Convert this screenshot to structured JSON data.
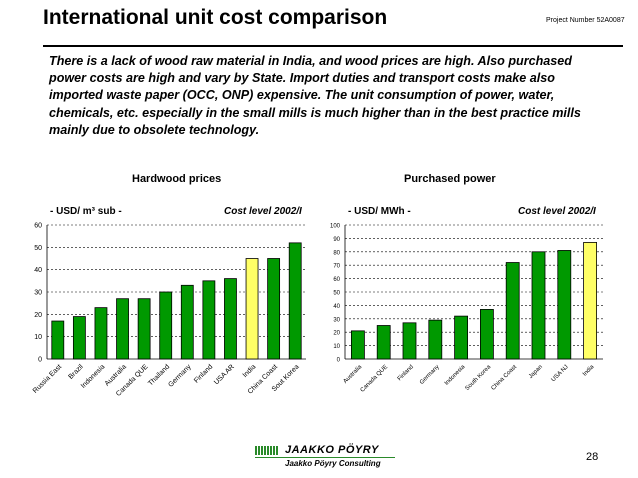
{
  "header": {
    "title": "International unit cost comparison",
    "project_number": "Project Number 52A0087"
  },
  "intro_text": "There is a lack of wood raw material in India, and wood prices are high. Also purchased power costs are high and vary by State.  Import duties and transport costs make also imported waste paper (OCC, ONP) expensive. The unit consumption of power, water, chemicals, etc. especially in the small mills is much higher than in the best practice mills mainly due to obsolete technology.",
  "colors": {
    "bar": "#009900",
    "highlight": "#ffff66",
    "brand": "#2a8a2a"
  },
  "chart_data": [
    {
      "type": "bar",
      "title": "Hardwood prices",
      "unit_label": "- USD/ m³ sub -",
      "cost_level": "Cost level 2002/I",
      "categories": [
        "Russia East",
        "Brazil",
        "Indonesia",
        "Australia",
        "Canada QUE",
        "Thailand",
        "Germany",
        "Finland",
        "USA AR",
        "India",
        "China Coast",
        "Sout Korea"
      ],
      "values": [
        17,
        19,
        23,
        27,
        27,
        30,
        33,
        35,
        36,
        45,
        45,
        52
      ],
      "highlight_category": "India",
      "ylim": [
        0,
        60
      ],
      "yticks": [
        0,
        10,
        20,
        30,
        40,
        50,
        60
      ],
      "grid": true
    },
    {
      "type": "bar",
      "title": "Purchased power",
      "unit_label": "- USD/ MWh -",
      "cost_level": "Cost level 2002/I",
      "categories": [
        "Australia",
        "Canada QUE",
        "Finland",
        "Germany",
        "Indonesia",
        "South Korea",
        "China Coast",
        "Japan",
        "USA NJ",
        "India"
      ],
      "values": [
        21,
        25,
        27,
        29,
        32,
        37,
        72,
        80,
        81,
        87
      ],
      "highlight_category": "India",
      "ylim": [
        0,
        100
      ],
      "yticks": [
        0,
        10,
        20,
        30,
        40,
        50,
        60,
        70,
        80,
        90,
        100
      ],
      "grid": true
    }
  ],
  "footer": {
    "logo_main": "JAAKKO PÖYRY",
    "logo_sub": "Jaakko Pöyry Consulting",
    "page_number": "28"
  }
}
